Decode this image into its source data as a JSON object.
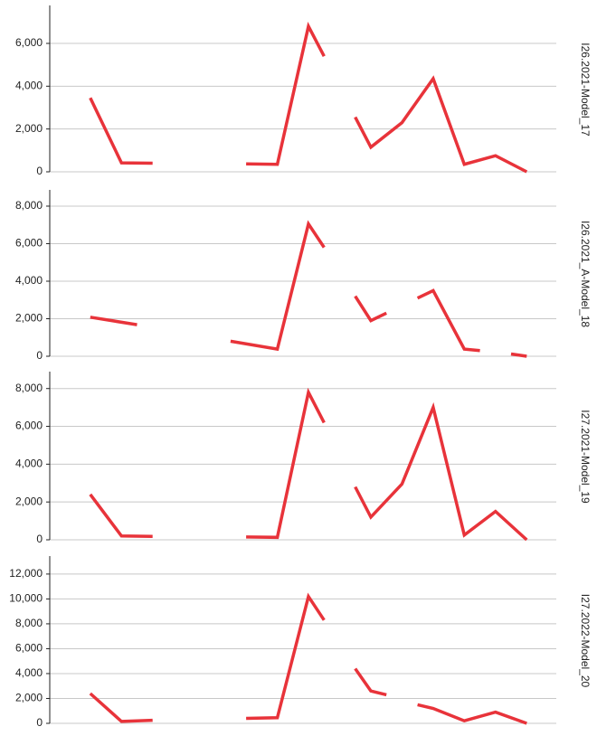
{
  "chart_data": [
    {
      "type": "line",
      "title": "I26.2021-Model_17",
      "color": "#e8333a",
      "x": [
        0,
        2,
        4,
        null,
        10,
        12,
        14,
        15,
        null,
        17,
        18,
        20,
        22,
        24,
        26,
        28
      ],
      "values": [
        3450,
        420,
        400,
        null,
        370,
        350,
        6800,
        5400,
        null,
        2550,
        1150,
        2300,
        4350,
        350,
        750,
        0
      ],
      "xlim": [
        -2.6,
        29.9
      ],
      "ylim": [
        0,
        7690
      ],
      "grid": true,
      "yticks": [
        0,
        {
          "value": 2000,
          "label": "2,000"
        },
        {
          "value": 4000,
          "label": "4,000"
        },
        {
          "value": 6000,
          "label": "6,000"
        }
      ]
    },
    {
      "type": "line",
      "title": "I26.2021_A-Model_18",
      "color": "#e8333a",
      "x": [
        0,
        3,
        null,
        9,
        12,
        14,
        15,
        null,
        17,
        18,
        19,
        null,
        21,
        22,
        24,
        25,
        null,
        27,
        28
      ],
      "values": [
        2080,
        1680,
        null,
        800,
        380,
        7050,
        5800,
        null,
        3200,
        1900,
        2300,
        null,
        3100,
        3500,
        380,
        300,
        null,
        120,
        0
      ],
      "xlim": [
        -2.6,
        29.9
      ],
      "ylim": [
        0,
        8770
      ],
      "grid": true,
      "yticks": [
        0,
        {
          "value": 2000,
          "label": "2,000"
        },
        {
          "value": 4000,
          "label": "4,000"
        },
        {
          "value": 6000,
          "label": "6,000"
        },
        {
          "value": 8000,
          "label": "8,000"
        }
      ]
    },
    {
      "type": "line",
      "title": "I27.2021-Model_19",
      "color": "#e8333a",
      "x": [
        0,
        2,
        4,
        null,
        10,
        12,
        14,
        15,
        null,
        17,
        18,
        20,
        22,
        24,
        26,
        28
      ],
      "values": [
        2400,
        200,
        180,
        null,
        150,
        130,
        7800,
        6200,
        null,
        2800,
        1200,
        2950,
        7000,
        250,
        1500,
        0
      ],
      "xlim": [
        -2.6,
        29.9
      ],
      "ylim": [
        0,
        8800
      ],
      "grid": true,
      "yticks": [
        0,
        {
          "value": 2000,
          "label": "2,000"
        },
        {
          "value": 4000,
          "label": "4,000"
        },
        {
          "value": 6000,
          "label": "6,000"
        },
        {
          "value": 8000,
          "label": "8,000"
        }
      ]
    },
    {
      "type": "line",
      "title": "I27.2022-Model_20",
      "color": "#e8333a",
      "x": [
        0,
        2,
        4,
        null,
        10,
        12,
        14,
        15,
        null,
        17,
        18,
        19,
        null,
        21,
        22,
        24,
        26,
        28
      ],
      "values": [
        2400,
        150,
        250,
        null,
        400,
        450,
        10200,
        8300,
        null,
        4400,
        2600,
        2300,
        null,
        1500,
        1200,
        200,
        900,
        0
      ],
      "xlim": [
        -2.6,
        29.9
      ],
      "ylim": [
        0,
        13300
      ],
      "grid": true,
      "yticks": [
        0,
        {
          "value": 2000,
          "label": "2,000"
        },
        {
          "value": 4000,
          "label": "4,000"
        },
        {
          "value": 6000,
          "label": "6,000"
        },
        {
          "value": 8000,
          "label": "8,000"
        },
        {
          "value": 10000,
          "label": "10,000"
        },
        {
          "value": 12000,
          "label": "12,000"
        }
      ]
    }
  ]
}
